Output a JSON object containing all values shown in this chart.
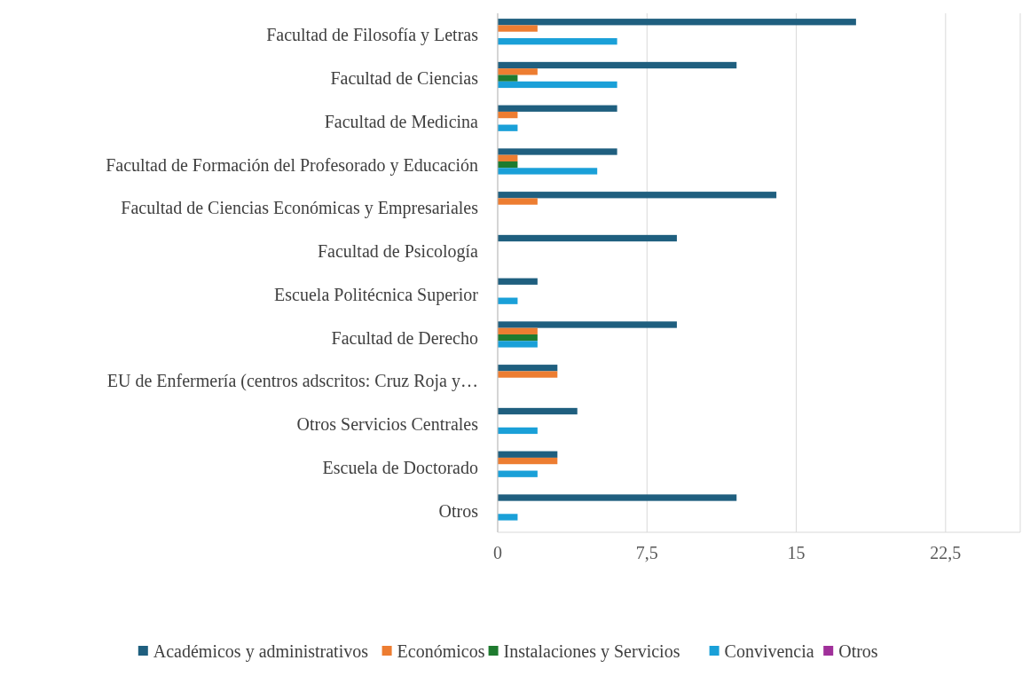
{
  "chart_data": {
    "type": "bar",
    "orientation": "horizontal",
    "categories": [
      "Facultad de Filosofía y Letras",
      "Facultad de Ciencias",
      "Facultad de Medicina",
      "Facultad de Formación del Profesorado y Educación",
      "Facultad de Ciencias Económicas y Empresariales",
      "Facultad de Psicología",
      "Escuela Politécnica Superior",
      "Facultad de Derecho",
      "EU de Enfermería (centros adscritos: Cruz Roja y…",
      "Otros Servicios Centrales",
      "Escuela de Doctorado",
      "Otros"
    ],
    "series": [
      {
        "name": "Académicos y administrativos",
        "color": "#1f5f7f",
        "values": [
          18,
          12,
          6,
          6,
          14,
          9,
          2,
          9,
          3,
          4,
          3,
          12
        ]
      },
      {
        "name": "Económicos",
        "color": "#ed7d31",
        "values": [
          2,
          2,
          1,
          1,
          2,
          null,
          null,
          2,
          3,
          null,
          3,
          null
        ]
      },
      {
        "name": "Instalaciones y Servicios",
        "color": "#1e7b2f",
        "values": [
          null,
          1,
          null,
          1,
          null,
          null,
          null,
          2,
          null,
          null,
          null,
          null
        ]
      },
      {
        "name": "Convivencia",
        "color": "#1aa0d8",
        "values": [
          6,
          6,
          1,
          5,
          null,
          null,
          1,
          2,
          null,
          2,
          2,
          1
        ]
      },
      {
        "name": "Otros",
        "color": "#a0309a",
        "values": [
          null,
          null,
          null,
          null,
          null,
          null,
          null,
          null,
          null,
          null,
          null,
          null
        ]
      }
    ],
    "xlim": [
      0,
      26.25
    ],
    "xticks": [
      0,
      {
        "value": 7.5,
        "label": "7,5"
      },
      15,
      {
        "value": 22.5,
        "label": "22,5"
      }
    ],
    "grid": "x",
    "legend": "bottom"
  }
}
